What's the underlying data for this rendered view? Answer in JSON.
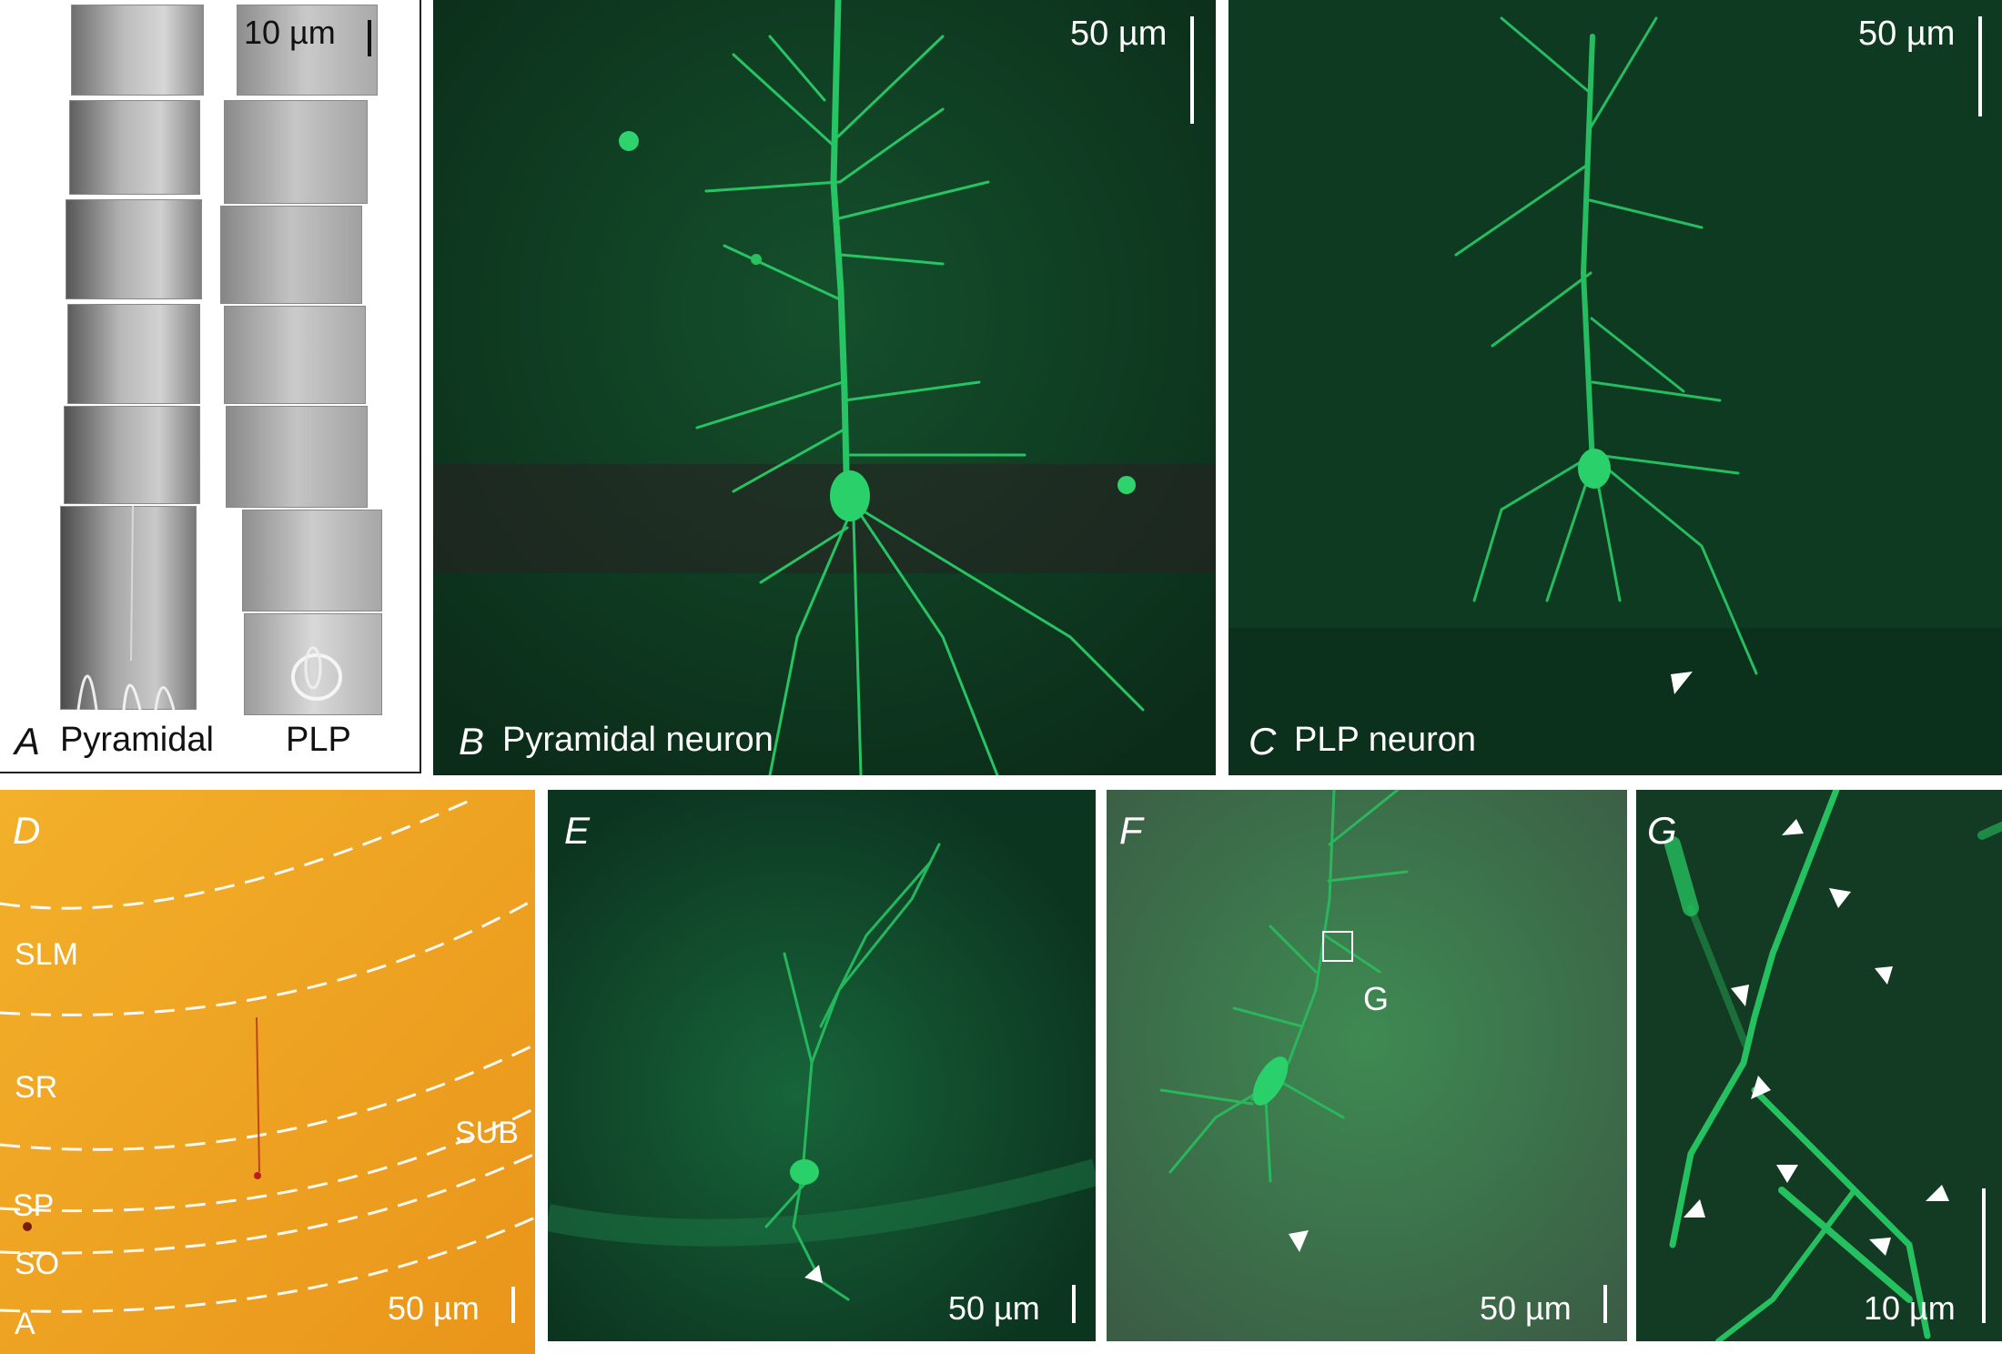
{
  "panels": {
    "A": {
      "letter": "A",
      "left_label": "Pyramidal",
      "right_label": "PLP",
      "scale_label": "10 µm"
    },
    "B": {
      "letter": "B",
      "title": "Pyramidal neuron",
      "scale_label": "50 µm"
    },
    "C": {
      "letter": "C",
      "title": "PLP neuron",
      "scale_label": "50 µm"
    },
    "D": {
      "letter": "D",
      "layers": [
        "SLM",
        "SR",
        "SUB",
        "SP",
        "SO",
        "A"
      ],
      "scale_label": "50 µm"
    },
    "E": {
      "letter": "E",
      "scale_label": "50 µm"
    },
    "F": {
      "letter": "F",
      "inset_label": "G",
      "scale_label": "50 µm"
    },
    "G": {
      "letter": "G",
      "scale_label": "10 µm"
    }
  },
  "colors": {
    "fluor_bg": "#0b3d20",
    "fluor_neuron": "#1fbf5e",
    "brightfield": "#f0a020",
    "dic_gray": "#9a9a9a"
  }
}
